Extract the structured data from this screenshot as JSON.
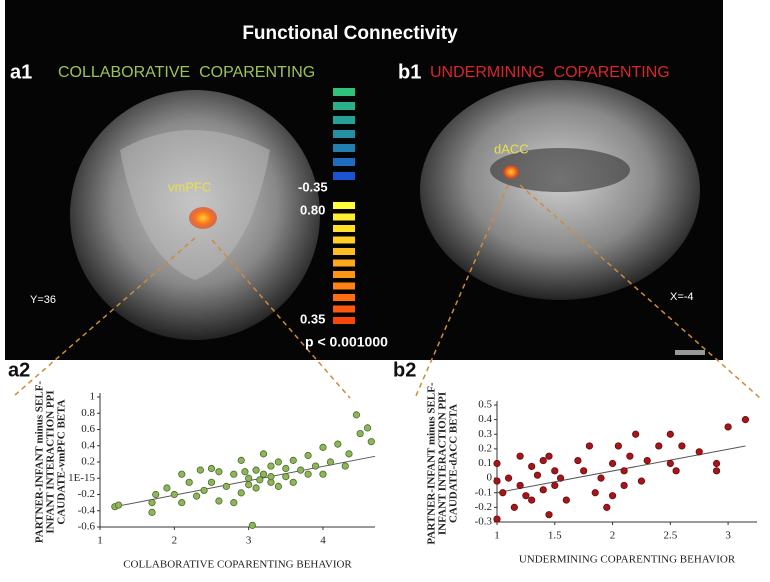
{
  "figure": {
    "title": "Functional Connectivity",
    "panel_a1": {
      "tag": "a1",
      "label": "COLLABORATIVE  COPARENTING",
      "region": "vmPFC",
      "coord": "Y=36"
    },
    "panel_b1": {
      "tag": "b1",
      "label": "UNDERMINING  COPARENTING",
      "region": "dACC",
      "coord": "X=-4"
    },
    "colorbar": {
      "labels": [
        "-0.35",
        "0.80",
        "0.35"
      ],
      "threshold": "p < 0.001000"
    },
    "panel_a2": {
      "tag": "a2"
    },
    "panel_b2": {
      "tag": "b2"
    }
  },
  "chart_data": [
    {
      "type": "scatter",
      "xlabel": "COLLABORATIVE COPARENTING  BEHAVIOR",
      "ylabel": [
        "PARTNER-INFANT minus SELF-",
        "INFANT INTERACTION PPI",
        "CAUDATE-vmPFC BETA"
      ],
      "color": "#8db65a",
      "xlim": [
        1,
        4.7
      ],
      "ylim": [
        -0.6,
        1
      ],
      "xticks": [
        1,
        2,
        3,
        4
      ],
      "yticks": [
        1,
        0.8,
        0.6,
        0.4,
        0.2,
        {
          "value": 0,
          "label": "1E-15"
        },
        -0.2,
        -0.4,
        -0.6
      ],
      "x": [
        1.2,
        1.25,
        1.7,
        1.7,
        1.75,
        1.9,
        2.0,
        2.1,
        2.1,
        2.2,
        2.3,
        2.35,
        2.4,
        2.5,
        2.5,
        2.6,
        2.6,
        2.7,
        2.8,
        2.8,
        2.9,
        2.9,
        3.0,
        3.0,
        3.05,
        3.1,
        3.1,
        3.2,
        3.2,
        3.3,
        3.3,
        3.4,
        3.4,
        3.5,
        3.5,
        3.6,
        3.6,
        3.7,
        3.8,
        3.8,
        3.9,
        4.0,
        4.0,
        4.1,
        4.2,
        4.3,
        4.35,
        4.45,
        4.5,
        4.6,
        4.65,
        3.3,
        3.15,
        2.95
      ],
      "values": [
        -0.35,
        -0.33,
        -0.3,
        -0.42,
        -0.2,
        -0.12,
        -0.2,
        0.05,
        -0.3,
        -0.05,
        -0.22,
        0.1,
        -0.15,
        0.12,
        -0.05,
        -0.28,
        0.08,
        -0.1,
        0.05,
        -0.3,
        -0.18,
        0.22,
        0.0,
        -0.08,
        -0.58,
        0.1,
        -0.12,
        0.3,
        0.05,
        -0.05,
        0.15,
        -0.1,
        0.2,
        0.02,
        0.12,
        -0.05,
        0.22,
        0.1,
        0.05,
        0.28,
        0.15,
        0.38,
        0.05,
        0.2,
        0.42,
        0.15,
        0.3,
        0.78,
        0.55,
        0.62,
        0.45,
        0.02,
        -0.02,
        0.08
      ],
      "trend": {
        "x": [
          1.2,
          4.7
        ],
        "y": [
          -0.35,
          0.27
        ]
      }
    },
    {
      "type": "scatter",
      "xlabel": "UNDERMINING COPARENTING BEHAVIOR",
      "ylabel": [
        "PARTNER-INFANT minus SELF-",
        "INFANT INTERACTION PPI",
        "CAUDATE-dACC BETA"
      ],
      "color": "#a3161b",
      "xlim": [
        1,
        3.25
      ],
      "ylim": [
        -0.3,
        0.5
      ],
      "xticks": [
        1,
        1.5,
        2,
        2.5,
        3
      ],
      "yticks": [
        0.5,
        0.4,
        0.3,
        0.2,
        0.1,
        0,
        -0.1,
        -0.2,
        -0.3
      ],
      "x": [
        1.0,
        1.0,
        1.0,
        1.05,
        1.1,
        1.15,
        1.2,
        1.2,
        1.25,
        1.3,
        1.3,
        1.35,
        1.4,
        1.4,
        1.45,
        1.45,
        1.5,
        1.5,
        1.55,
        1.6,
        1.7,
        1.75,
        1.8,
        1.85,
        1.9,
        1.95,
        2.0,
        2.0,
        2.05,
        2.1,
        2.1,
        2.15,
        2.2,
        2.25,
        2.3,
        2.4,
        2.5,
        2.5,
        2.55,
        2.6,
        2.75,
        2.9,
        2.9,
        3.0,
        3.15
      ],
      "values": [
        -0.28,
        -0.02,
        0.1,
        -0.1,
        0.0,
        -0.2,
        0.15,
        -0.05,
        -0.12,
        0.08,
        -0.15,
        0.02,
        0.12,
        -0.08,
        0.15,
        -0.25,
        0.05,
        -0.05,
        0.0,
        -0.15,
        0.12,
        0.05,
        0.22,
        -0.1,
        0.0,
        -0.2,
        0.1,
        -0.12,
        0.22,
        0.05,
        -0.05,
        0.15,
        0.3,
        -0.02,
        0.12,
        0.22,
        0.3,
        0.1,
        0.05,
        0.22,
        0.18,
        0.1,
        0.05,
        0.35,
        0.4
      ],
      "trend": {
        "x": [
          1,
          3.15
        ],
        "y": [
          -0.1,
          0.22
        ]
      }
    }
  ]
}
